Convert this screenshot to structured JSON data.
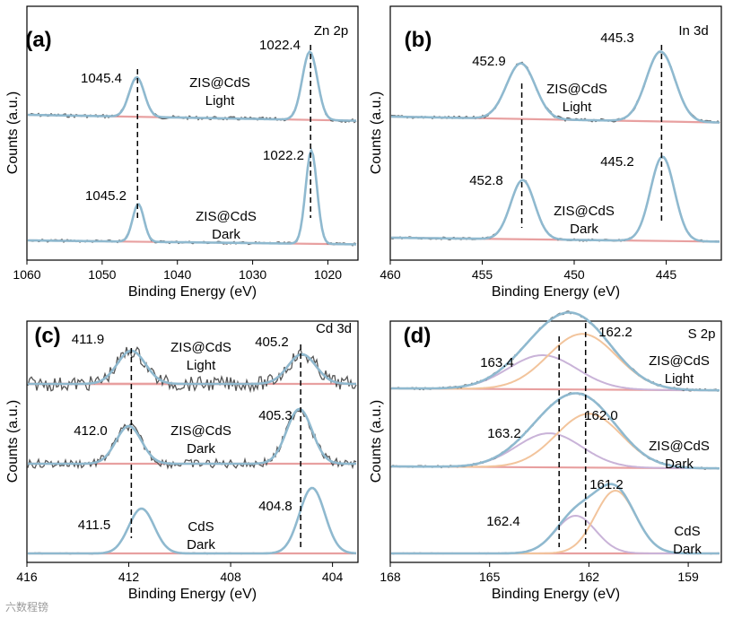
{
  "watermark": "六数程镑",
  "chart_data": [
    {
      "type": "line",
      "panel_label": "(a)",
      "title": "Zn 2p",
      "xlabel": "Binding Energy (eV)",
      "ylabel": "Counts (a.u.)",
      "xlim": [
        1060,
        1016
      ],
      "xticks": [
        "1060",
        "1050",
        "1040",
        "1030",
        "1020"
      ],
      "series": [
        {
          "name": "ZIS@CdS Light",
          "label_line1": "ZIS@CdS",
          "label_line2": "Light",
          "peaks": [
            {
              "position": 1045.4,
              "label": "1045.4"
            },
            {
              "position": 1022.4,
              "label": "1022.4"
            }
          ]
        },
        {
          "name": "ZIS@CdS Dark",
          "label_line1": "ZIS@CdS",
          "label_line2": "Dark",
          "peaks": [
            {
              "position": 1045.2,
              "label": "1045.2"
            },
            {
              "position": 1022.2,
              "label": "1022.2"
            }
          ]
        }
      ]
    },
    {
      "type": "line",
      "panel_label": "(b)",
      "title": "In 3d",
      "xlabel": "Binding Energy (eV)",
      "ylabel": "Counts (a.u.)",
      "xlim": [
        460,
        442
      ],
      "xticks": [
        "460",
        "455",
        "450",
        "445"
      ],
      "series": [
        {
          "name": "ZIS@CdS Light",
          "label_line1": "ZIS@CdS",
          "label_line2": "Light",
          "peaks": [
            {
              "position": 452.9,
              "label": "452.9"
            },
            {
              "position": 445.3,
              "label": "445.3"
            }
          ]
        },
        {
          "name": "ZIS@CdS Dark",
          "label_line1": "ZIS@CdS",
          "label_line2": "Dark",
          "peaks": [
            {
              "position": 452.8,
              "label": "452.8"
            },
            {
              "position": 445.2,
              "label": "445.2"
            }
          ]
        }
      ]
    },
    {
      "type": "line",
      "panel_label": "(c)",
      "title": "Cd 3d",
      "xlabel": "Binding Energy (eV)",
      "ylabel": "Counts (a.u.)",
      "xlim": [
        416,
        403
      ],
      "xticks": [
        "416",
        "412",
        "408",
        "404"
      ],
      "series": [
        {
          "name": "ZIS@CdS Light",
          "label_line1": "ZIS@CdS",
          "label_line2": "Light",
          "peaks": [
            {
              "position": 411.9,
              "label": "411.9"
            },
            {
              "position": 405.2,
              "label": "405.2"
            }
          ]
        },
        {
          "name": "ZIS@CdS Dark",
          "label_line1": "ZIS@CdS",
          "label_line2": "Dark",
          "peaks": [
            {
              "position": 412.0,
              "label": "412.0"
            },
            {
              "position": 405.3,
              "label": "405.3"
            }
          ]
        },
        {
          "name": "CdS Dark",
          "label_line1": "CdS",
          "label_line2": "Dark",
          "peaks": [
            {
              "position": 411.5,
              "label": "411.5"
            },
            {
              "position": 404.8,
              "label": "404.8"
            }
          ]
        }
      ]
    },
    {
      "type": "line",
      "panel_label": "(d)",
      "title": "S 2p",
      "xlabel": "Binding Energy (eV)",
      "ylabel": "Counts (a.u.)",
      "xlim": [
        168,
        158
      ],
      "xticks": [
        "168",
        "165",
        "162",
        "159"
      ],
      "series": [
        {
          "name": "ZIS@CdS Light",
          "label_line1": "ZIS@CdS",
          "label_line2": "Light",
          "peaks": [
            {
              "position": 163.4,
              "label": "163.4"
            },
            {
              "position": 162.2,
              "label": "162.2"
            }
          ]
        },
        {
          "name": "ZIS@CdS Dark",
          "label_line1": "ZIS@CdS",
          "label_line2": "Dark",
          "peaks": [
            {
              "position": 163.2,
              "label": "163.2"
            },
            {
              "position": 162.0,
              "label": "162.0"
            }
          ]
        },
        {
          "name": "CdS Dark",
          "label_line1": "CdS",
          "label_line2": "Dark",
          "peaks": [
            {
              "position": 162.4,
              "label": "162.4"
            },
            {
              "position": 161.2,
              "label": "161.2"
            }
          ]
        }
      ]
    }
  ]
}
